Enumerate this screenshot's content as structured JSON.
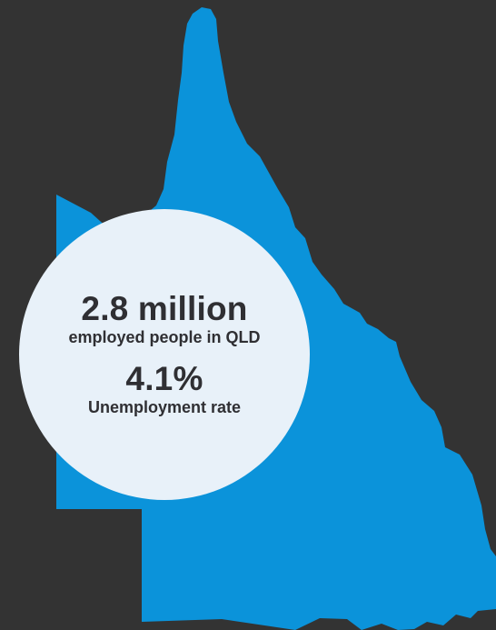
{
  "colors": {
    "background": "#333333",
    "map_fill": "#0b93da",
    "circle_fill": "#e8f1f9",
    "text": "#2f2f33"
  },
  "map": {
    "region_icon": "queensland-map-icon"
  },
  "stats": [
    {
      "value": "2.8 million",
      "label": "employed people in QLD"
    },
    {
      "value": "4.1%",
      "label": "Unemployment rate"
    }
  ]
}
